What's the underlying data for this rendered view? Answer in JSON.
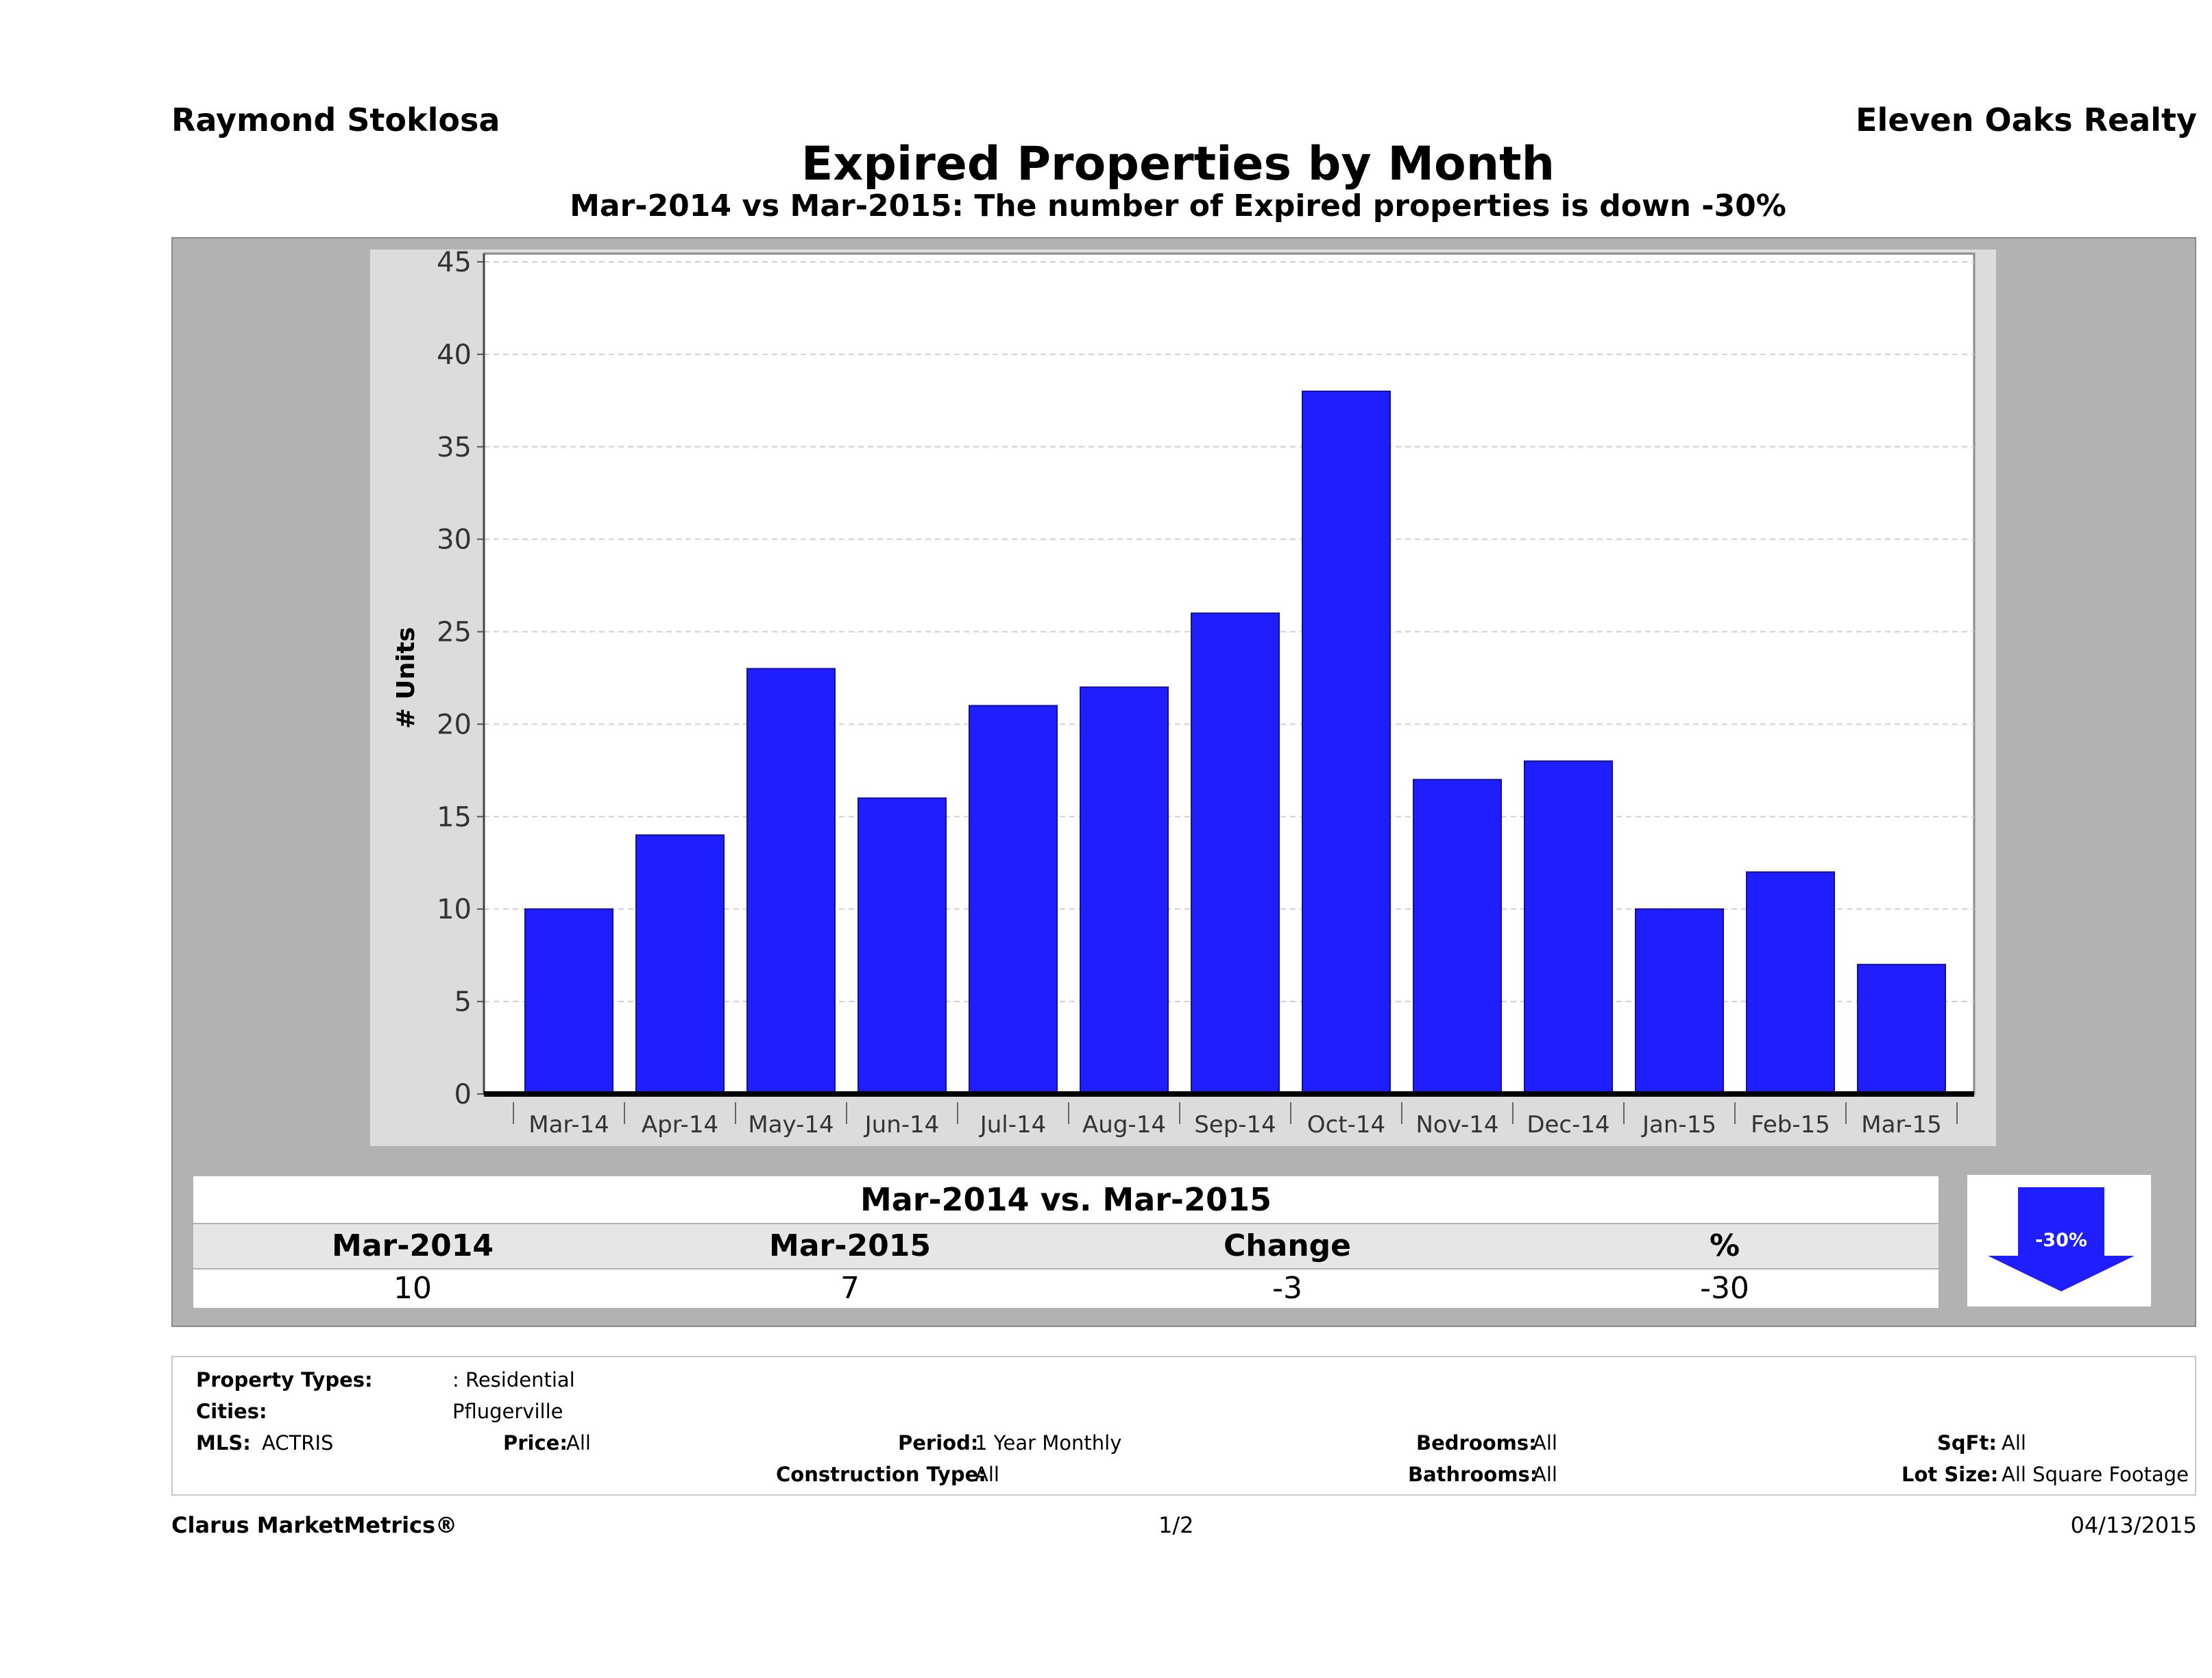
{
  "header": {
    "agent": "Raymond Stoklosa",
    "company": "Eleven Oaks Realty",
    "title": "Expired Properties by Month",
    "subtitle": "Mar-2014 vs Mar-2015: The number of Expired  properties is down -30%"
  },
  "chart_data": {
    "type": "bar",
    "categories": [
      "Mar-14",
      "Apr-14",
      "May-14",
      "Jun-14",
      "Jul-14",
      "Aug-14",
      "Sep-14",
      "Oct-14",
      "Nov-14",
      "Dec-14",
      "Jan-15",
      "Feb-15",
      "Mar-15"
    ],
    "values": [
      10,
      14,
      23,
      16,
      21,
      22,
      26,
      38,
      17,
      18,
      10,
      12,
      7
    ],
    "ylabel": "# Units",
    "ylim": [
      0,
      45
    ],
    "yticks": [
      0,
      5,
      10,
      15,
      20,
      25,
      30,
      35,
      40,
      45
    ],
    "grid": true,
    "bar_color": "#1e1eff"
  },
  "summary": {
    "title": "Mar-2014 vs. Mar-2015",
    "headers": [
      "Mar-2014",
      "Mar-2015",
      "Change",
      "%"
    ],
    "values": [
      "10",
      "7",
      "-3",
      "-30"
    ],
    "badge": "-30%",
    "badge_color": "#1e1eff"
  },
  "filters": {
    "property_types_label": "Property Types:",
    "property_types_value": ": Residential",
    "cities_label": "Cities:",
    "cities_value": "Pflugerville",
    "mls_label": "MLS:",
    "mls_value": "ACTRIS",
    "price_label": "Price:",
    "price_value": "All",
    "period_label": "Period:",
    "period_value": "1 Year Monthly",
    "construction_label": "Construction Type:",
    "construction_value": "All",
    "bedrooms_label": "Bedrooms:",
    "bedrooms_value": "All",
    "bathrooms_label": "Bathrooms:",
    "bathrooms_value": "All",
    "sqft_label": "SqFt:",
    "sqft_value": "All",
    "lotsize_label": "Lot Size:",
    "lotsize_value": "All Square Footage"
  },
  "footer": {
    "brand": "Clarus MarketMetrics®",
    "page": "1/2",
    "date": "04/13/2015"
  }
}
